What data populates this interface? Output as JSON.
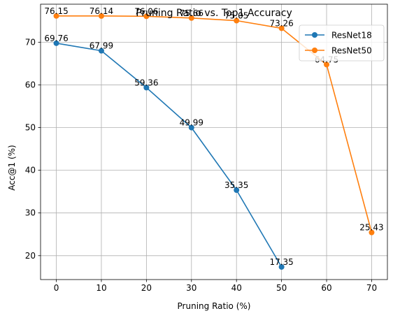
{
  "chart_data": {
    "type": "line",
    "title": "Pruning Ratio vs. Top1 Accuracy",
    "xlabel": "Pruning Ratio (%)",
    "ylabel": "Acc@1 (%)",
    "xlim": [
      -3.5,
      73.5
    ],
    "ylim": [
      14.4,
      78.9
    ],
    "xticks": [
      0,
      10,
      20,
      30,
      40,
      50,
      60,
      70
    ],
    "yticks": [
      20,
      30,
      40,
      50,
      60,
      70
    ],
    "grid": true,
    "legend_position": "upper right",
    "series": [
      {
        "name": "ResNet18",
        "color": "#1f77b4",
        "marker": "circle",
        "x": [
          0,
          10,
          20,
          30,
          40,
          50
        ],
        "values": [
          69.76,
          67.99,
          59.36,
          49.99,
          35.35,
          17.35
        ],
        "labels": [
          "69.76",
          "67.99",
          "59.36",
          "49.99",
          "35.35",
          "17.35"
        ]
      },
      {
        "name": "ResNet50",
        "color": "#ff7f0e",
        "marker": "circle",
        "x": [
          0,
          10,
          20,
          30,
          40,
          50,
          60,
          70
        ],
        "values": [
          76.15,
          76.14,
          76.06,
          75.66,
          75.05,
          73.26,
          64.75,
          25.43
        ],
        "labels": [
          "76.15",
          "76.14",
          "76.06",
          "75.66",
          "75.05",
          "73.26",
          "64.75",
          "25.43"
        ]
      }
    ]
  }
}
